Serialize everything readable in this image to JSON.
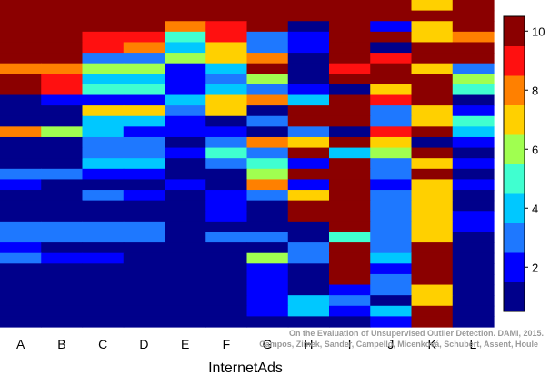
{
  "chart_data": {
    "type": "heatmap",
    "xlabel": "InternetAds",
    "x_categories": [
      "A",
      "B",
      "C",
      "D",
      "E",
      "F",
      "G",
      "H",
      "I",
      "J",
      "K",
      "L"
    ],
    "colorbar": {
      "range": [
        0.5,
        10.5
      ],
      "ticks": [
        2,
        4,
        6,
        8,
        10
      ],
      "colors": [
        "#00008b",
        "#0000ff",
        "#1e78ff",
        "#00c8ff",
        "#40ffd0",
        "#a0ff50",
        "#ffd000",
        "#ff8000",
        "#ff1010",
        "#8b0000"
      ]
    },
    "row_count": 31,
    "values": [
      [
        10,
        10,
        10,
        10,
        10,
        10,
        10,
        10,
        10,
        10,
        7,
        10
      ],
      [
        10,
        10,
        10,
        10,
        10,
        10,
        10,
        10,
        10,
        10,
        10,
        10
      ],
      [
        10,
        10,
        10,
        10,
        8,
        9,
        10,
        1,
        10,
        2,
        7,
        10
      ],
      [
        10,
        10,
        9,
        9,
        5,
        9,
        3,
        2,
        10,
        10,
        7,
        8
      ],
      [
        10,
        10,
        9,
        8,
        4,
        7,
        3,
        2,
        10,
        1,
        10,
        10
      ],
      [
        10,
        10,
        3,
        3,
        6,
        7,
        8,
        1,
        10,
        9,
        10,
        10
      ],
      [
        8,
        8,
        6,
        6,
        2,
        4,
        10,
        1,
        9,
        10,
        7,
        3
      ],
      [
        10,
        9,
        4,
        4,
        2,
        3,
        6,
        1,
        10,
        10,
        10,
        6
      ],
      [
        10,
        9,
        5,
        5,
        2,
        4,
        3,
        2,
        1,
        7,
        10,
        5
      ],
      [
        1,
        2,
        2,
        2,
        4,
        7,
        8,
        4,
        10,
        9,
        10,
        1
      ],
      [
        1,
        1,
        7,
        7,
        3,
        7,
        1,
        10,
        10,
        3,
        7,
        2
      ],
      [
        1,
        1,
        4,
        4,
        2,
        1,
        3,
        10,
        10,
        3,
        7,
        5
      ],
      [
        8,
        6,
        4,
        2,
        2,
        2,
        1,
        3,
        1,
        9,
        10,
        4
      ],
      [
        1,
        1,
        3,
        3,
        1,
        3,
        8,
        7,
        10,
        7,
        1,
        2
      ],
      [
        1,
        1,
        3,
        3,
        2,
        5,
        3,
        10,
        4,
        6,
        10,
        1
      ],
      [
        1,
        1,
        4,
        4,
        1,
        3,
        5,
        2,
        10,
        3,
        7,
        2
      ],
      [
        3,
        3,
        2,
        2,
        1,
        1,
        6,
        10,
        10,
        3,
        10,
        1
      ],
      [
        2,
        1,
        1,
        1,
        2,
        1,
        8,
        2,
        10,
        2,
        7,
        2
      ],
      [
        1,
        1,
        3,
        2,
        1,
        2,
        3,
        7,
        10,
        3,
        7,
        1
      ],
      [
        1,
        1,
        1,
        1,
        1,
        2,
        1,
        10,
        10,
        3,
        7,
        1
      ],
      [
        1,
        1,
        1,
        1,
        1,
        2,
        1,
        10,
        10,
        3,
        7,
        2
      ],
      [
        3,
        3,
        3,
        3,
        1,
        1,
        1,
        1,
        10,
        3,
        7,
        2
      ],
      [
        3,
        3,
        3,
        3,
        1,
        3,
        3,
        1,
        5,
        3,
        7,
        1
      ],
      [
        2,
        1,
        1,
        1,
        1,
        1,
        1,
        3,
        10,
        3,
        10,
        1
      ],
      [
        3,
        2,
        2,
        1,
        1,
        1,
        6,
        3,
        10,
        4,
        10,
        1
      ],
      [
        1,
        1,
        1,
        1,
        1,
        1,
        2,
        1,
        10,
        2,
        10,
        1
      ],
      [
        1,
        1,
        1,
        1,
        1,
        1,
        2,
        1,
        10,
        3,
        10,
        1
      ],
      [
        1,
        1,
        1,
        1,
        1,
        1,
        2,
        1,
        2,
        3,
        7,
        1
      ],
      [
        1,
        1,
        1,
        1,
        1,
        1,
        2,
        4,
        3,
        1,
        7,
        1
      ],
      [
        1,
        1,
        1,
        1,
        1,
        1,
        2,
        4,
        2,
        4,
        10,
        1
      ],
      [
        1,
        1,
        1,
        1,
        1,
        1,
        1,
        1,
        1,
        2,
        10,
        1
      ]
    ]
  },
  "watermark": {
    "line1": "On the Evaluation of Unsupervised Outlier Detection. DAMI, 2015.",
    "line2": "Campos, Zimek, Sander, Campello, Micenková, Schubert, Assent, Houle"
  }
}
